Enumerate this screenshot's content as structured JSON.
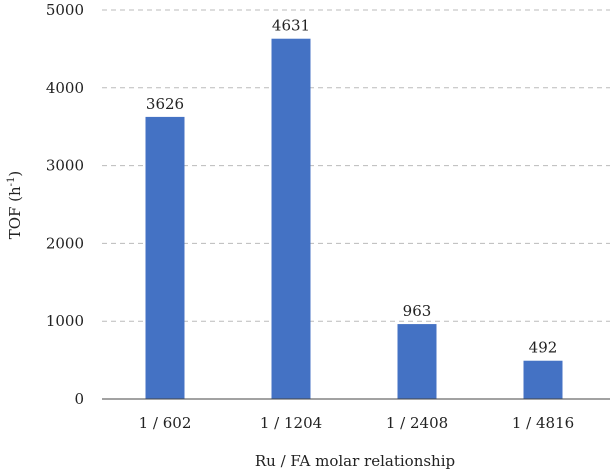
{
  "chart_data": {
    "type": "bar",
    "title": "",
    "categories": [
      "1 / 602",
      "1 / 1204",
      "1 / 2408",
      "1 / 4816"
    ],
    "values": [
      3626,
      4631,
      963,
      492
    ],
    "data_labels": [
      "3626",
      "4631",
      "963",
      "492"
    ],
    "xlabel": "Ru / FA molar relationship",
    "ylabel": "TOF (h",
    "ylabel_sup": "-1",
    "ylabel_close": ")",
    "ylim": [
      0,
      5000
    ],
    "yticks": [
      0,
      1000,
      2000,
      3000,
      4000,
      5000
    ],
    "grid": true,
    "legend": "none",
    "bar_color": "#4472C4"
  }
}
